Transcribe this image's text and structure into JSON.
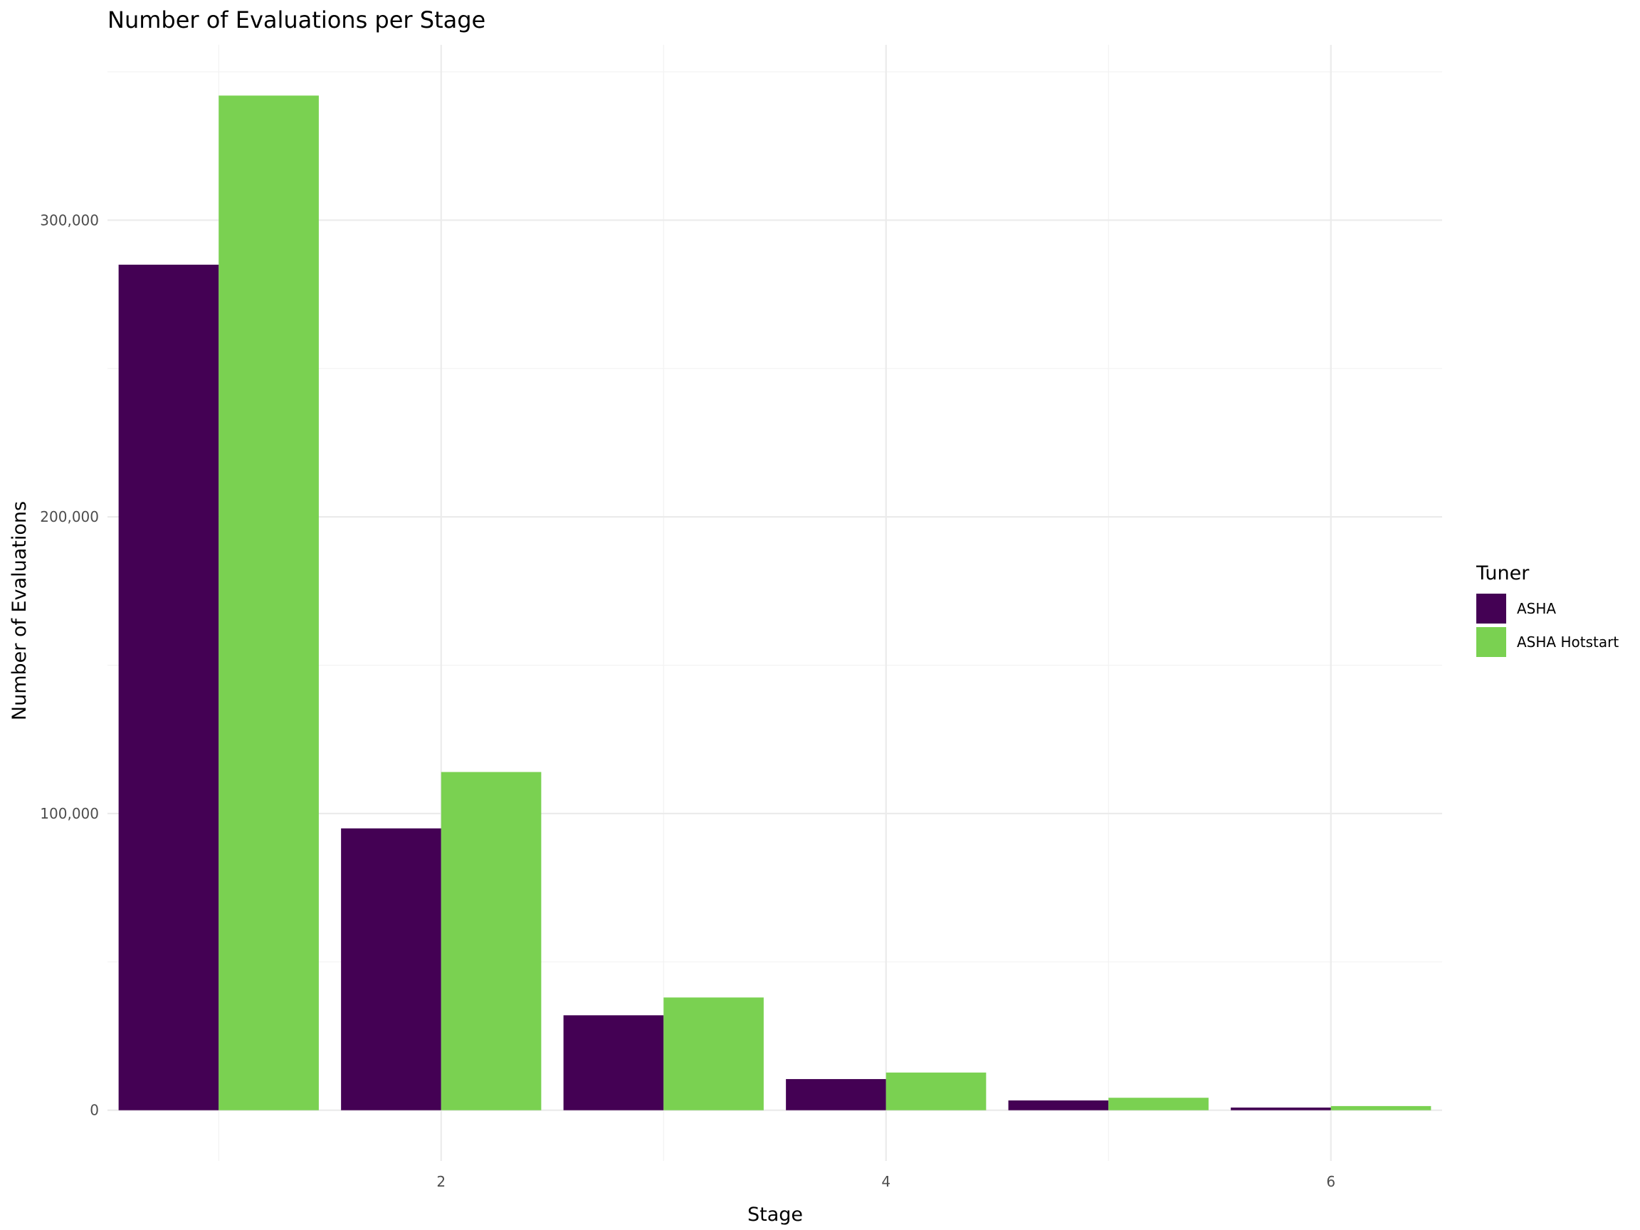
{
  "chart_data": {
    "type": "bar",
    "title": "Number of Evaluations per Stage",
    "xlabel": "Stage",
    "ylabel": "Number of Evaluations",
    "categories": [
      1,
      2,
      3,
      4,
      5,
      6
    ],
    "series": [
      {
        "name": "ASHA",
        "values": [
          285000,
          95000,
          32000,
          10500,
          3300,
          900
        ],
        "color": "#440154"
      },
      {
        "name": "ASHA Hotstart",
        "values": [
          342000,
          114000,
          38000,
          12700,
          4200,
          1400
        ],
        "color": "#7ad151"
      }
    ],
    "xlim": [
      0.5,
      6.5
    ],
    "ylim": [
      -17100,
      359100
    ],
    "x_ticks": [
      2,
      4,
      6
    ],
    "x_tick_labels": [
      "2",
      "4",
      "6"
    ],
    "y_ticks": [
      0,
      100000,
      200000,
      300000
    ],
    "y_tick_labels": [
      "0",
      "100,000",
      "200,000",
      "300,000"
    ],
    "grid": true,
    "legend": {
      "title": "Tuner",
      "position": "right"
    }
  }
}
